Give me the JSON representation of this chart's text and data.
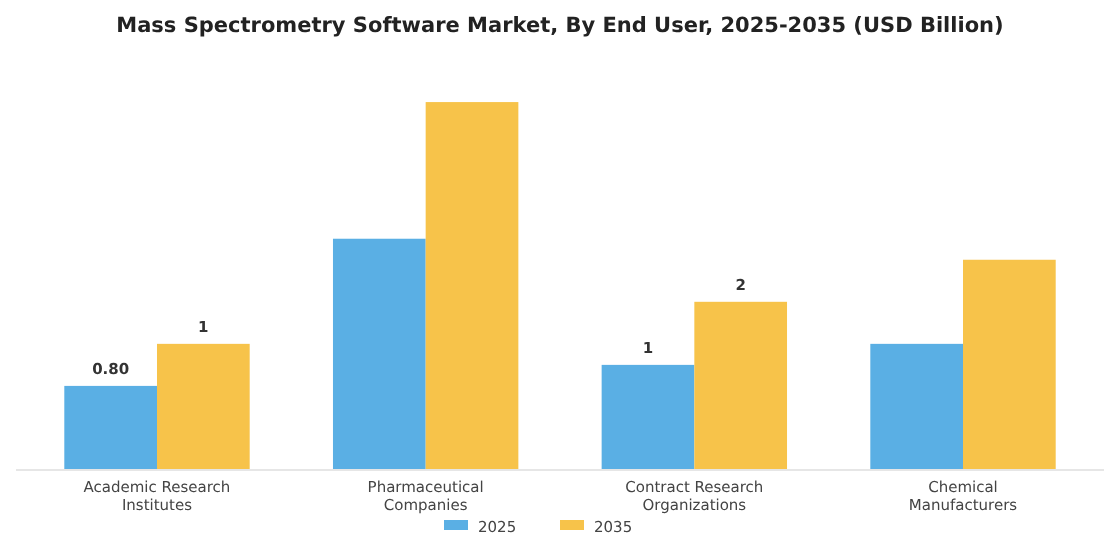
{
  "chart_data": {
    "type": "bar",
    "title": "Mass Spectrometry Software Market, By End User, 2025-2035 (USD Billion)",
    "categories": [
      "Academic Research Institutes",
      "Pharmaceutical Companies",
      "Contract Research Organizations",
      "Chemical Manufacturers"
    ],
    "series": [
      {
        "name": "2025",
        "color": "#5aafe4",
        "values": [
          0.8,
          2.2,
          1.0,
          1.2
        ],
        "value_labels": [
          "0.80",
          null,
          "1",
          null
        ]
      },
      {
        "name": "2035",
        "color": "#f7c34a",
        "values": [
          1.2,
          3.5,
          1.6,
          2.0
        ],
        "value_labels": [
          "1",
          null,
          "2",
          null
        ]
      }
    ],
    "tick_labels": "x",
    "legend": "bottom"
  }
}
